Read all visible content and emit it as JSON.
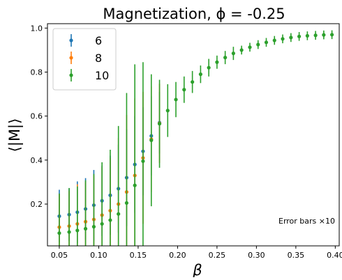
{
  "chart_data": {
    "type": "scatter",
    "title": "Magnetization, ϕ = -0.25",
    "xlabel": "β",
    "ylabel": "⟨|M|⟩",
    "xlim": [
      0.035,
      0.405
    ],
    "ylim": [
      0.01,
      1.02
    ],
    "xticks": [
      0.05,
      0.1,
      0.15,
      0.2,
      0.25,
      0.3,
      0.35,
      0.4
    ],
    "xtick_labels": [
      "0.05",
      "0.10",
      "0.15",
      "0.20",
      "0.25",
      "0.30",
      "0.35",
      "0.40"
    ],
    "yticks": [
      0.2,
      0.4,
      0.6,
      0.8,
      1.0
    ],
    "ytick_labels": [
      "0.2",
      "0.4",
      "0.6",
      "0.8",
      "1.0"
    ],
    "grid": false,
    "legend_position": "top-left",
    "annotation": "Error bars ×10",
    "x": [
      0.05,
      0.0625,
      0.0729,
      0.0833,
      0.0938,
      0.1042,
      0.1146,
      0.125,
      0.1354,
      0.1458,
      0.1562,
      0.1667,
      0.1771,
      0.1875,
      0.1979,
      0.2083,
      0.2188,
      0.2292,
      0.2396,
      0.25,
      0.2604,
      0.2708,
      0.2812,
      0.2917,
      0.3021,
      0.3125,
      0.3229,
      0.3333,
      0.3438,
      0.3542,
      0.3646,
      0.375,
      0.3854,
      0.3958
    ],
    "series": [
      {
        "name": "6",
        "color": "#1f77b4",
        "points": [
          {
            "x": 0.05,
            "y": 0.145,
            "err": 0.012
          },
          {
            "x": 0.0625,
            "y": 0.152,
            "err": 0.012
          },
          {
            "x": 0.0729,
            "y": 0.163,
            "err": 0.014
          },
          {
            "x": 0.0833,
            "y": 0.178,
            "err": 0.014
          },
          {
            "x": 0.0938,
            "y": 0.195,
            "err": 0.016
          },
          {
            "x": 0.1042,
            "y": 0.215,
            "err": 0.016
          },
          {
            "x": 0.1146,
            "y": 0.24,
            "err": 0.018
          },
          {
            "x": 0.125,
            "y": 0.27,
            "err": 0.02
          },
          {
            "x": 0.1354,
            "y": 0.32,
            "err": 0.022
          },
          {
            "x": 0.1458,
            "y": 0.38,
            "err": 0.022
          },
          {
            "x": 0.1562,
            "y": 0.44,
            "err": 0.02
          },
          {
            "x": 0.1667,
            "y": 0.51,
            "err": 0.018
          },
          {
            "x": 0.1771,
            "y": 0.57,
            "err": 0.014
          }
        ]
      },
      {
        "name": "8",
        "color": "#ff7f0e",
        "points": [
          {
            "x": 0.05,
            "y": 0.095,
            "err": 0.015
          },
          {
            "x": 0.0625,
            "y": 0.1,
            "err": 0.016
          },
          {
            "x": 0.0729,
            "y": 0.11,
            "err": 0.018
          },
          {
            "x": 0.0833,
            "y": 0.12,
            "err": 0.018
          },
          {
            "x": 0.0938,
            "y": 0.13,
            "err": 0.02
          },
          {
            "x": 0.1042,
            "y": 0.15,
            "err": 0.022
          },
          {
            "x": 0.1146,
            "y": 0.17,
            "err": 0.024
          },
          {
            "x": 0.125,
            "y": 0.2,
            "err": 0.03
          },
          {
            "x": 0.1354,
            "y": 0.255,
            "err": 0.035
          },
          {
            "x": 0.1458,
            "y": 0.33,
            "err": 0.035
          },
          {
            "x": 0.1562,
            "y": 0.41,
            "err": 0.03
          },
          {
            "x": 0.1667,
            "y": 0.495,
            "err": 0.024
          },
          {
            "x": 0.1771,
            "y": 0.567,
            "err": 0.018
          }
        ]
      },
      {
        "name": "10",
        "color": "#2ca02c",
        "points": [
          {
            "x": 0.05,
            "y": 0.068,
            "err": 0.018
          },
          {
            "x": 0.0625,
            "y": 0.073,
            "err": 0.02
          },
          {
            "x": 0.0729,
            "y": 0.08,
            "err": 0.02
          },
          {
            "x": 0.0833,
            "y": 0.088,
            "err": 0.022
          },
          {
            "x": 0.0938,
            "y": 0.097,
            "err": 0.024
          },
          {
            "x": 0.1042,
            "y": 0.11,
            "err": 0.028
          },
          {
            "x": 0.1146,
            "y": 0.127,
            "err": 0.032
          },
          {
            "x": 0.125,
            "y": 0.155,
            "err": 0.04
          },
          {
            "x": 0.1354,
            "y": 0.205,
            "err": 0.05
          },
          {
            "x": 0.1458,
            "y": 0.285,
            "err": 0.055
          },
          {
            "x": 0.1562,
            "y": 0.395,
            "err": 0.045
          },
          {
            "x": 0.1667,
            "y": 0.49,
            "err": 0.03
          },
          {
            "x": 0.1771,
            "y": 0.565,
            "err": 0.02
          },
          {
            "x": 0.1875,
            "y": 0.625,
            "err": 0.012
          },
          {
            "x": 0.1979,
            "y": 0.675,
            "err": 0.008
          },
          {
            "x": 0.2083,
            "y": 0.72,
            "err": 0.006
          },
          {
            "x": 0.2188,
            "y": 0.755,
            "err": 0.005
          },
          {
            "x": 0.2292,
            "y": 0.79,
            "err": 0.004
          },
          {
            "x": 0.2396,
            "y": 0.82,
            "err": 0.004
          },
          {
            "x": 0.25,
            "y": 0.845,
            "err": 0.003
          },
          {
            "x": 0.2604,
            "y": 0.866,
            "err": 0.003
          },
          {
            "x": 0.2708,
            "y": 0.885,
            "err": 0.003
          },
          {
            "x": 0.2812,
            "y": 0.9,
            "err": 0.002
          },
          {
            "x": 0.2917,
            "y": 0.913,
            "err": 0.002
          },
          {
            "x": 0.3021,
            "y": 0.925,
            "err": 0.002
          },
          {
            "x": 0.3125,
            "y": 0.935,
            "err": 0.002
          },
          {
            "x": 0.3229,
            "y": 0.944,
            "err": 0.002
          },
          {
            "x": 0.3333,
            "y": 0.951,
            "err": 0.002
          },
          {
            "x": 0.3438,
            "y": 0.957,
            "err": 0.002
          },
          {
            "x": 0.3542,
            "y": 0.962,
            "err": 0.002
          },
          {
            "x": 0.3646,
            "y": 0.965,
            "err": 0.002
          },
          {
            "x": 0.375,
            "y": 0.967,
            "err": 0.002
          },
          {
            "x": 0.3854,
            "y": 0.969,
            "err": 0.002
          },
          {
            "x": 0.3958,
            "y": 0.97,
            "err": 0.002
          }
        ]
      }
    ]
  }
}
